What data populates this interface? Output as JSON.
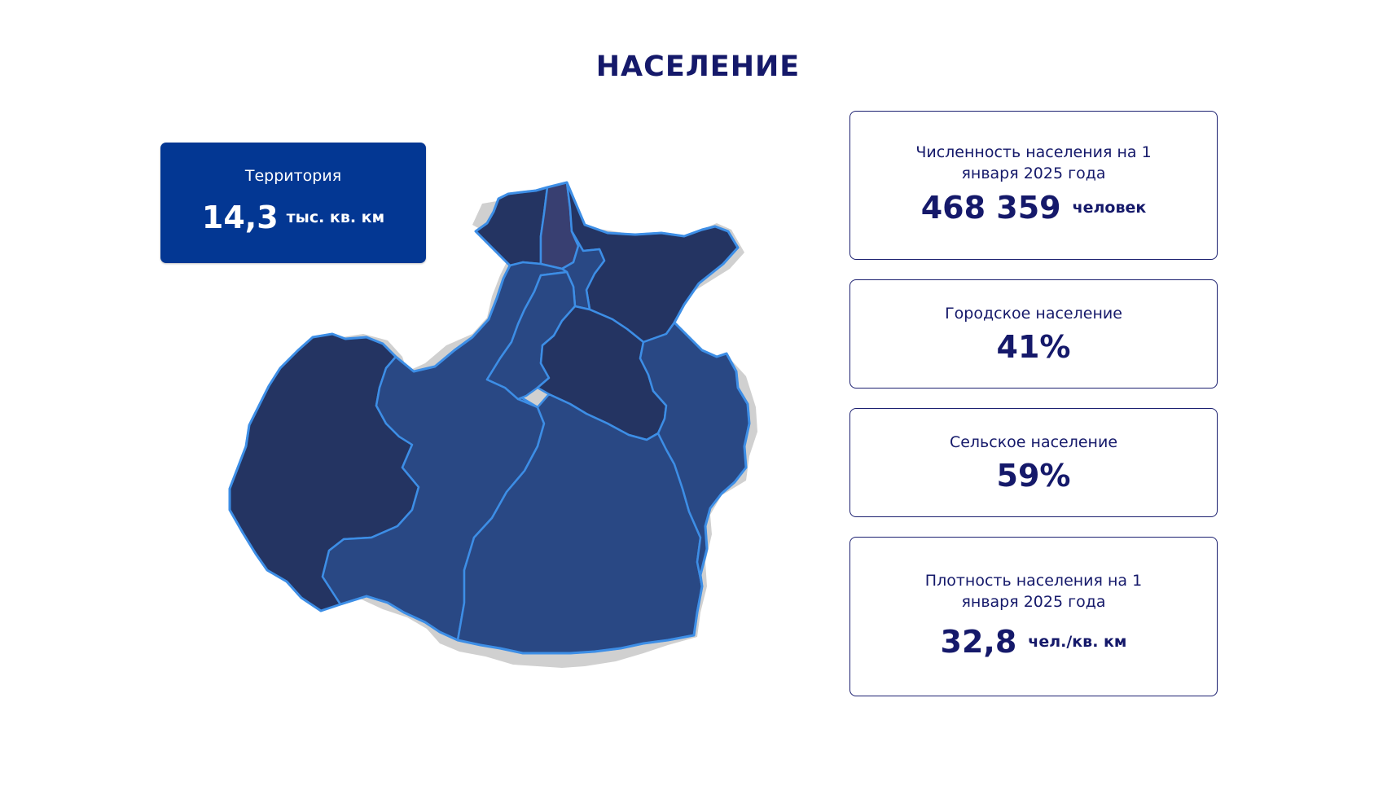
{
  "page": {
    "title": "НАСЕЛЕНИЕ"
  },
  "territory": {
    "label": "Территория",
    "value": "14,3",
    "unit": "тыс. кв. км"
  },
  "population": {
    "label": "Численность населения на 1 января 2025 года",
    "value": "468 359",
    "unit": "человек"
  },
  "urban": {
    "label": "Городское население",
    "value": "41%"
  },
  "rural": {
    "label": "Сельское население",
    "value": "59%"
  },
  "density": {
    "label": "Плотность населения на 1 января 2025 года",
    "value": "32,8",
    "unit": "чел./кв. км"
  },
  "map": {
    "colors": {
      "dark": "#243462",
      "medium": "#294884",
      "purple": "#383f71",
      "border": "#3d8ee6",
      "shadow": "#c9c9c9",
      "card_fill": "#033793",
      "text": "#15196a"
    },
    "districts": [
      {
        "name": "north-west-district",
        "shade": "dark"
      },
      {
        "name": "north-narrow-district",
        "shade": "purple"
      },
      {
        "name": "north-east-district",
        "shade": "dark"
      },
      {
        "name": "north-small-district",
        "shade": "medium"
      },
      {
        "name": "western-district",
        "shade": "dark"
      },
      {
        "name": "west-central-district",
        "shade": "medium"
      },
      {
        "name": "central-north-district",
        "shade": "medium"
      },
      {
        "name": "central-district",
        "shade": "dark"
      },
      {
        "name": "southern-district",
        "shade": "medium"
      },
      {
        "name": "eastern-district",
        "shade": "medium"
      }
    ]
  }
}
